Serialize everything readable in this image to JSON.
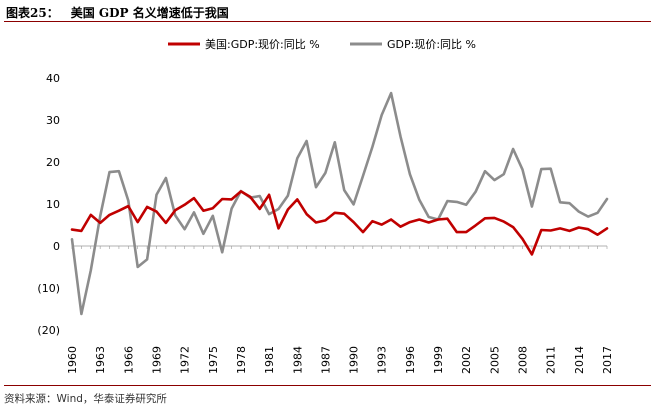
{
  "header": {
    "label": "图表25：",
    "title": "美国 GDP 名义增速低于我国"
  },
  "footer": {
    "source": "资料来源：Wind，华泰证券研究所"
  },
  "colors": {
    "us": "#c00000",
    "china": "#8c8c8c",
    "accent": "#8b0000"
  },
  "chart_data": {
    "type": "line",
    "title": "美国 GDP 名义增速低于我国",
    "xlabel": "",
    "ylabel": "",
    "ylim": [
      -20,
      40
    ],
    "yticks": [
      40,
      30,
      20,
      10,
      0,
      -10,
      -20
    ],
    "ytick_labels": [
      "40",
      "30",
      "20",
      "10",
      "0",
      "(10)",
      "(20)"
    ],
    "xtick_labels": [
      "1960",
      "1963",
      "1966",
      "1969",
      "1972",
      "1975",
      "1978",
      "1981",
      "1984",
      "1987",
      "1990",
      "1993",
      "1996",
      "1999",
      "2002",
      "2005",
      "2008",
      "2011",
      "2014",
      "2017"
    ],
    "legend_position": "top-center",
    "x": [
      1960,
      1961,
      1962,
      1963,
      1964,
      1965,
      1966,
      1967,
      1968,
      1969,
      1970,
      1971,
      1972,
      1973,
      1974,
      1975,
      1976,
      1977,
      1978,
      1979,
      1980,
      1981,
      1982,
      1983,
      1984,
      1985,
      1986,
      1987,
      1988,
      1989,
      1990,
      1991,
      1992,
      1993,
      1994,
      1995,
      1996,
      1997,
      1998,
      1999,
      2000,
      2001,
      2002,
      2003,
      2004,
      2005,
      2006,
      2007,
      2008,
      2009,
      2010,
      2011,
      2012,
      2013,
      2014,
      2015,
      2016,
      2017
    ],
    "series": [
      {
        "name": "美国:GDP:现价:同比 %",
        "color": "#c00000",
        "values": [
          3.9,
          3.6,
          7.4,
          5.5,
          7.4,
          8.4,
          9.5,
          5.7,
          9.3,
          8.2,
          5.5,
          8.5,
          9.8,
          11.4,
          8.4,
          9.0,
          11.2,
          11.1,
          13.0,
          11.7,
          8.8,
          12.2,
          4.2,
          8.7,
          11.1,
          7.6,
          5.6,
          6.1,
          7.9,
          7.7,
          5.7,
          3.3,
          5.9,
          5.1,
          6.3,
          4.6,
          5.7,
          6.3,
          5.6,
          6.3,
          6.5,
          3.3,
          3.3,
          4.9,
          6.6,
          6.7,
          5.8,
          4.5,
          1.7,
          -2.0,
          3.8,
          3.7,
          4.2,
          3.6,
          4.4,
          4.0,
          2.7,
          4.2
        ]
      },
      {
        "name": "GDP:现价:同比 %",
        "color": "#8c8c8c",
        "values": [
          1.6,
          -16.2,
          -5.8,
          7.1,
          17.6,
          17.8,
          10.8,
          -5.0,
          -3.2,
          12.2,
          16.2,
          7.3,
          4.0,
          8.0,
          2.9,
          7.2,
          -1.5,
          8.9,
          13.1,
          11.5,
          11.9,
          7.6,
          8.8,
          12.0,
          20.9,
          25.0,
          14.0,
          17.4,
          24.7,
          13.3,
          9.9,
          16.7,
          23.6,
          31.2,
          36.4,
          26.1,
          17.1,
          11.0,
          6.9,
          6.3,
          10.7,
          10.5,
          9.8,
          12.9,
          17.8,
          15.7,
          17.1,
          23.1,
          18.2,
          9.4,
          18.3,
          18.4,
          10.4,
          10.2,
          8.2,
          7.0,
          7.9,
          11.2
        ]
      }
    ]
  }
}
